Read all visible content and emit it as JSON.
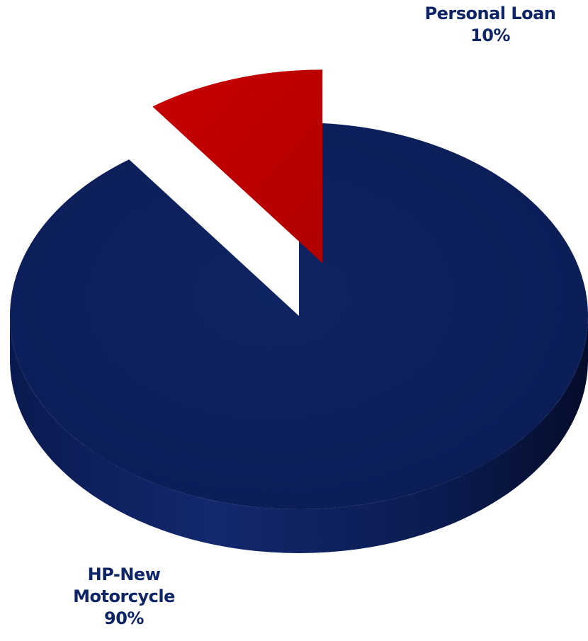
{
  "chart_data": {
    "type": "pie",
    "style": "3d-exploded",
    "slices": [
      {
        "name": "HP-New Motorcycle",
        "name_lines": [
          "HP-New",
          "Motorcycle"
        ],
        "value": 90,
        "value_label": "90%",
        "color": "#0c1f5c",
        "exploded": false
      },
      {
        "name": "Personal Loan",
        "name_lines": [
          "Personal Loan"
        ],
        "value": 10,
        "value_label": "10%",
        "color": "#c00000",
        "exploded": true
      }
    ],
    "legend": "none",
    "data_labels": "outside"
  }
}
